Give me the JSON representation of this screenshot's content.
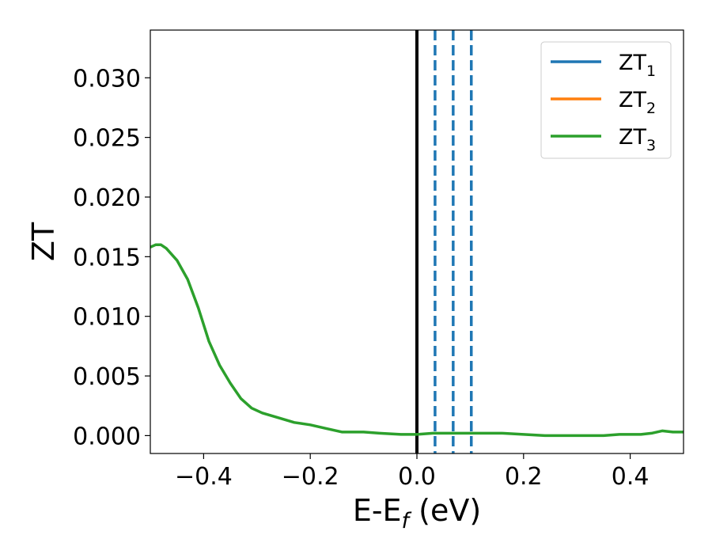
{
  "chart_data": {
    "type": "line",
    "xlabel": {
      "main": "E-E",
      "sub": "f",
      "suffix": " (eV)"
    },
    "ylabel": "ZT",
    "xlim": [
      -0.5,
      0.5
    ],
    "ylim": [
      -0.0015,
      0.034
    ],
    "x_ticks": [
      -0.4,
      -0.2,
      0.0,
      0.2,
      0.4
    ],
    "x_tick_labels": [
      "−0.4",
      "−0.2",
      "0.0",
      "0.2",
      "0.4"
    ],
    "y_ticks": [
      0.0,
      0.005,
      0.01,
      0.015,
      0.02,
      0.025,
      0.03
    ],
    "y_tick_labels": [
      "0.000",
      "0.005",
      "0.010",
      "0.015",
      "0.020",
      "0.025",
      "0.030"
    ],
    "grid": false,
    "legend_position": "top-right",
    "series": [
      {
        "name": "ZT",
        "subscript": "1",
        "color": "#1f77b4",
        "x": [],
        "y": []
      },
      {
        "name": "ZT",
        "subscript": "2",
        "color": "#ff7f0e",
        "x": [],
        "y": []
      },
      {
        "name": "ZT",
        "subscript": "3",
        "color": "#2ca02c",
        "x": [
          -0.5,
          -0.49,
          -0.48,
          -0.47,
          -0.45,
          -0.43,
          -0.41,
          -0.39,
          -0.37,
          -0.35,
          -0.33,
          -0.31,
          -0.29,
          -0.26,
          -0.23,
          -0.2,
          -0.17,
          -0.14,
          -0.12,
          -0.1,
          -0.07,
          -0.03,
          0.0,
          0.03,
          0.05,
          0.08,
          0.12,
          0.16,
          0.2,
          0.24,
          0.28,
          0.32,
          0.35,
          0.38,
          0.42,
          0.44,
          0.46,
          0.48,
          0.5
        ],
        "y": [
          0.0158,
          0.016,
          0.016,
          0.0157,
          0.0147,
          0.0131,
          0.0107,
          0.0079,
          0.0059,
          0.0044,
          0.0031,
          0.0023,
          0.0019,
          0.0015,
          0.0011,
          0.0009,
          0.0006,
          0.0003,
          0.0003,
          0.0003,
          0.0002,
          0.0001,
          0.0001,
          0.0002,
          0.0002,
          0.0002,
          0.0002,
          0.0002,
          0.0001,
          0.0,
          0.0,
          0.0,
          0.0,
          0.0001,
          0.0001,
          0.0002,
          0.0004,
          0.0003,
          0.0003
        ]
      }
    ],
    "vertical_lines": [
      {
        "x": 0.0,
        "color": "#000000",
        "style": "solid"
      },
      {
        "x": 0.034,
        "color": "#1f77b4",
        "style": "dashed"
      },
      {
        "x": 0.068,
        "color": "#1f77b4",
        "style": "dashed"
      },
      {
        "x": 0.102,
        "color": "#1f77b4",
        "style": "dashed"
      }
    ]
  }
}
